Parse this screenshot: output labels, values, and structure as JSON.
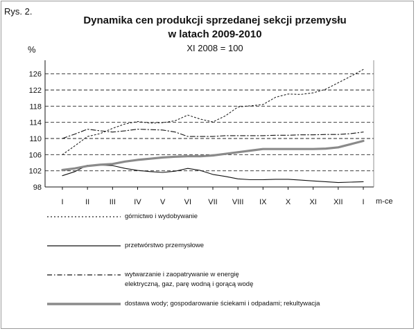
{
  "figure_label": "Rys. 2.",
  "chart_data": {
    "type": "line",
    "title_line1": "Dynamika cen produkcji sprzedanej sekcji przemysłu",
    "title_line2": "w latach 2009-2010",
    "subtitle": "XI 2008 = 100",
    "ylabel": "%",
    "xlabel": "m-ce",
    "ylim": [
      98,
      128
    ],
    "yticks": [
      98,
      102,
      106,
      110,
      114,
      118,
      122,
      126
    ],
    "grid": true,
    "legend_position": "bottom",
    "categories": [
      "I",
      "II",
      "III",
      "IV",
      "V",
      "VI",
      "VII",
      "VIII",
      "IX",
      "X",
      "XI",
      "XII",
      "I",
      "II",
      "III",
      "IV",
      "V",
      "VI",
      "VII",
      "VIII",
      "IX",
      "X",
      "XI",
      "XII",
      "I"
    ],
    "x_tick_labels": [
      "I",
      "II",
      "III",
      "IV",
      "V",
      "VI",
      "VII",
      "VIII",
      "IX",
      "X",
      "XI",
      "XII",
      "I"
    ],
    "series": [
      {
        "name": "górnictwo i wydobywanie",
        "color": "#222222",
        "style": "dotted",
        "values": [
          106.0,
          108.2,
          110.5,
          111.2,
          112.5,
          113.6,
          114.2,
          113.8,
          113.9,
          114.4,
          115.8,
          114.8,
          114.1,
          115.6,
          117.8,
          118.1,
          118.4,
          120.2,
          121.0,
          120.9,
          121.3,
          122.2,
          123.8,
          125.4,
          127.1
        ]
      },
      {
        "name": "przetwórstwo przemysłowe",
        "color": "#111111",
        "style": "solid",
        "values": [
          100.8,
          101.8,
          103.4,
          103.4,
          103.3,
          102.6,
          102.1,
          101.8,
          101.6,
          101.9,
          102.6,
          102.1,
          101.1,
          100.6,
          100.0,
          99.8,
          99.8,
          99.9,
          99.9,
          99.7,
          99.5,
          99.3,
          99.1,
          99.2,
          99.3
        ]
      },
      {
        "name_line1": "wytwarzanie i zaopatrywanie w energię",
        "name_line2": "elektryczną, gaz, parę wodną i gorącą wodę",
        "color": "#111111",
        "style": "dashdot",
        "values": [
          110.0,
          111.1,
          112.3,
          111.9,
          111.6,
          111.9,
          112.3,
          112.2,
          112.1,
          111.6,
          110.5,
          110.5,
          110.5,
          110.7,
          110.7,
          110.7,
          110.7,
          110.8,
          110.8,
          110.9,
          110.9,
          111.0,
          111.0,
          111.2,
          111.6
        ]
      },
      {
        "name": "dostawa wody; gospodarowanie ściekami i odpadami; rekultywacja",
        "color": "#8a8a8a",
        "style": "thick",
        "values": [
          102.2,
          102.6,
          103.2,
          103.5,
          103.7,
          104.3,
          104.7,
          105.0,
          105.3,
          105.5,
          105.6,
          105.6,
          105.8,
          106.2,
          106.6,
          107.0,
          107.4,
          107.4,
          107.4,
          107.4,
          107.4,
          107.5,
          107.8,
          108.6,
          109.4
        ]
      }
    ]
  }
}
